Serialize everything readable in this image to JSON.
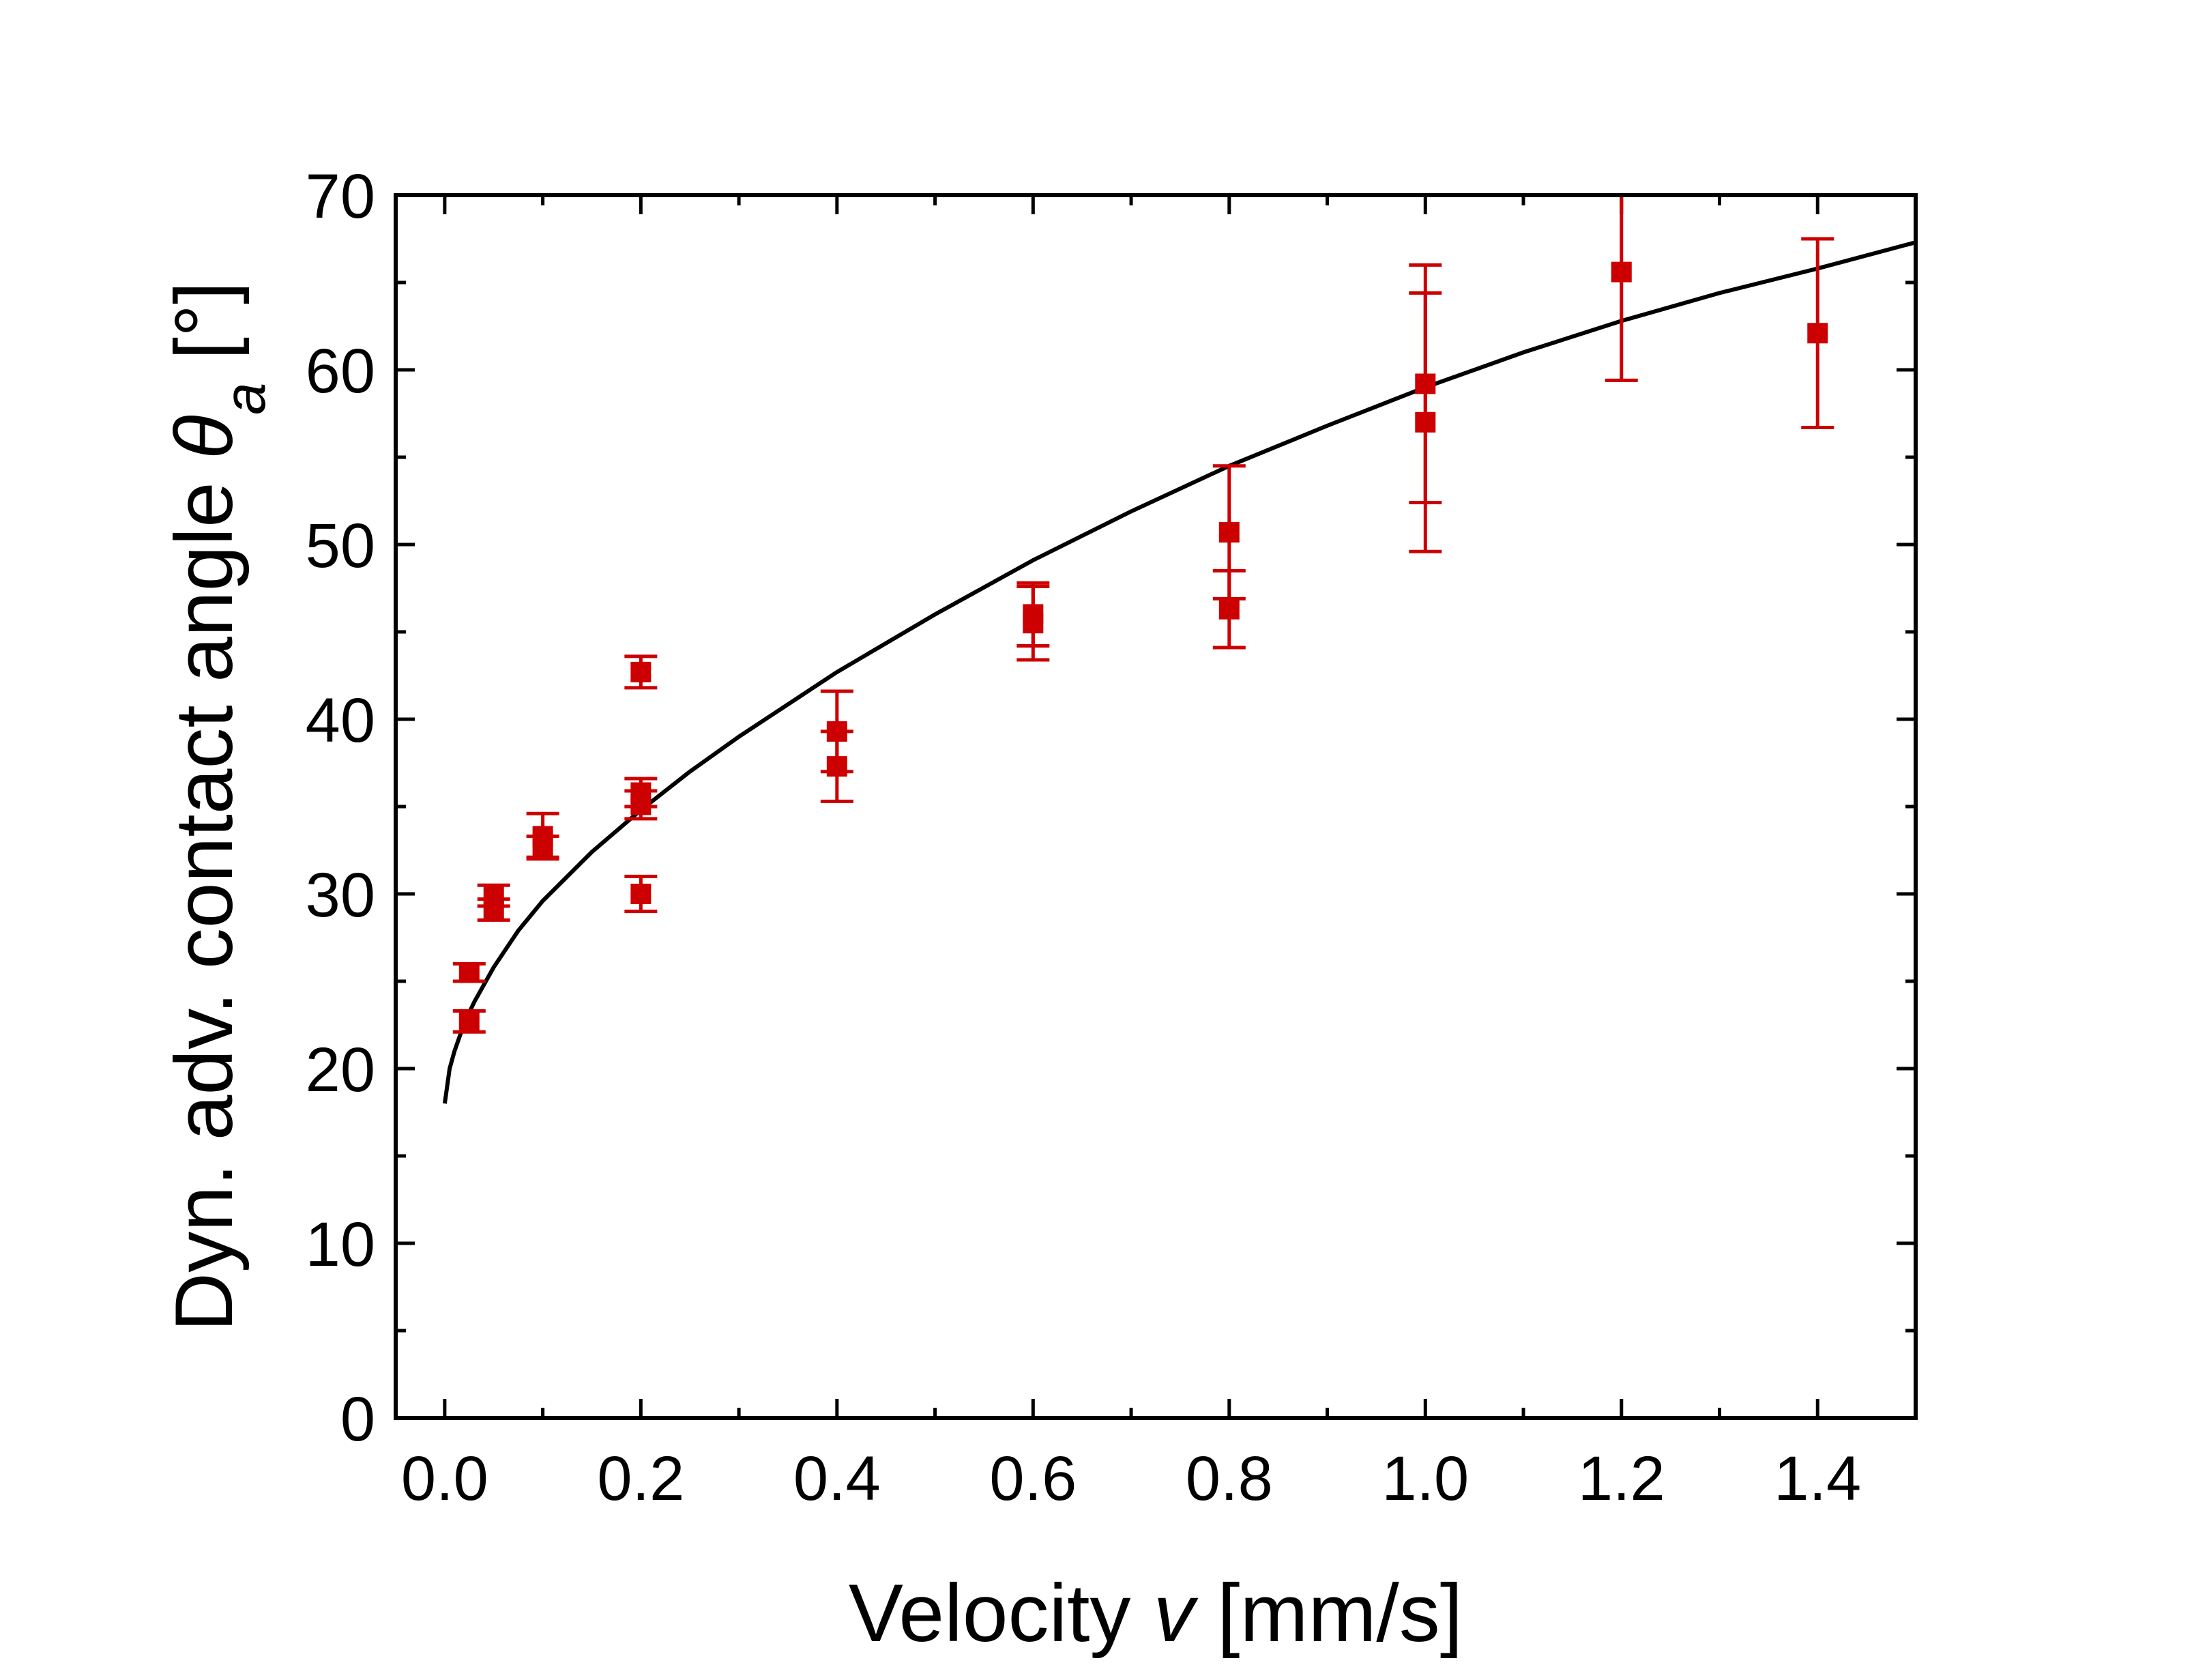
{
  "chart_data": {
    "type": "scatter",
    "title": "",
    "xlabel": {
      "prefix": "Velocity ",
      "var": "v",
      "suffix": " [mm/s]"
    },
    "ylabel": {
      "prefix": "Dyn. adv. contact angle ",
      "var": "θ",
      "sub": "a",
      "suffix": " [°]"
    },
    "xlim": [
      -0.05,
      1.5
    ],
    "ylim": [
      0,
      70
    ],
    "x_ticks": [
      0.0,
      0.2,
      0.4,
      0.6,
      0.8,
      1.0,
      1.2,
      1.4
    ],
    "x_tick_labels": [
      "0.0",
      "0.2",
      "0.4",
      "0.6",
      "0.8",
      "1.0",
      "1.2",
      "1.4"
    ],
    "y_ticks": [
      0,
      10,
      20,
      30,
      40,
      50,
      60,
      70
    ],
    "y_tick_labels": [
      "0",
      "10",
      "20",
      "30",
      "40",
      "50",
      "60",
      "70"
    ],
    "grid": false,
    "colors": {
      "points": "#cc0000",
      "fit": "#000000",
      "axes": "#000000"
    },
    "series": [
      {
        "name": "measurements",
        "marker": "square",
        "points": [
          {
            "x": 0.025,
            "y": 25.5,
            "err": 0.5
          },
          {
            "x": 0.025,
            "y": 22.7,
            "err": 0.6
          },
          {
            "x": 0.05,
            "y": 29.9,
            "err": 0.6
          },
          {
            "x": 0.05,
            "y": 29.1,
            "err": 0.6
          },
          {
            "x": 0.1,
            "y": 33.3,
            "err": 1.3
          },
          {
            "x": 0.1,
            "y": 32.7,
            "err": 0.6
          },
          {
            "x": 0.2,
            "y": 42.7,
            "err": 0.9
          },
          {
            "x": 0.2,
            "y": 35.8,
            "err": 0.8
          },
          {
            "x": 0.2,
            "y": 35.1,
            "err": 0.8
          },
          {
            "x": 0.2,
            "y": 30.0,
            "err": 1.0
          },
          {
            "x": 0.4,
            "y": 39.3,
            "err": 2.3
          },
          {
            "x": 0.4,
            "y": 37.3,
            "err": 2.0
          },
          {
            "x": 0.6,
            "y": 46.0,
            "err": 1.8
          },
          {
            "x": 0.6,
            "y": 45.5,
            "err": 2.1
          },
          {
            "x": 0.8,
            "y": 50.7,
            "err": 3.8
          },
          {
            "x": 0.8,
            "y": 46.3,
            "err": 2.2
          },
          {
            "x": 1.0,
            "y": 59.2,
            "err": 6.8
          },
          {
            "x": 1.0,
            "y": 57.0,
            "err": 7.4
          },
          {
            "x": 1.2,
            "y": 65.6,
            "err": 6.2
          },
          {
            "x": 1.4,
            "y": 62.1,
            "err": 5.4
          }
        ]
      },
      {
        "name": "fit",
        "type": "line",
        "x": [
          0.0,
          0.005,
          0.01,
          0.02,
          0.03,
          0.05,
          0.075,
          0.1,
          0.15,
          0.2,
          0.25,
          0.3,
          0.4,
          0.5,
          0.6,
          0.7,
          0.8,
          0.9,
          1.0,
          1.1,
          1.2,
          1.3,
          1.4,
          1.5
        ],
        "y": [
          18.0,
          20.0,
          21.0,
          22.6,
          23.8,
          25.8,
          27.9,
          29.6,
          32.4,
          34.8,
          37.0,
          39.0,
          42.7,
          46.0,
          49.1,
          51.9,
          54.5,
          56.8,
          59.0,
          61.0,
          62.8,
          64.4,
          65.8,
          67.3
        ]
      }
    ]
  }
}
